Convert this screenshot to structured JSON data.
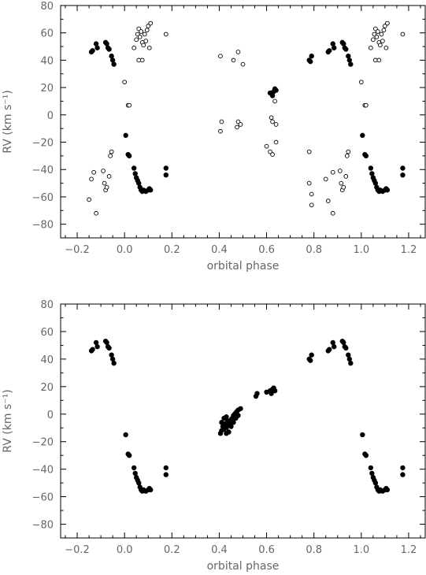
{
  "chart_data": [
    {
      "type": "scatter",
      "title": "",
      "xlabel": "orbital phase",
      "ylabel": "RV (km s⁻¹)",
      "xlim": [
        -0.27,
        1.27
      ],
      "ylim": [
        -90,
        80
      ],
      "xticks": [
        -0.2,
        0.0,
        0.2,
        0.4,
        0.6,
        0.8,
        1.0,
        1.2
      ],
      "xtick_labels": [
        "−0.2",
        "0.0",
        "0.2",
        "0.4",
        "0.6",
        "0.8",
        "1.0",
        "1.2"
      ],
      "yticks": [
        -80,
        -60,
        -40,
        -20,
        0,
        20,
        40,
        60,
        80
      ],
      "ytick_labels": [
        "−80",
        "−60",
        "−40",
        "−20",
        "0",
        "20",
        "40",
        "60",
        "80"
      ],
      "grid": false,
      "series": [
        {
          "marker": "filled-circle",
          "color": "#000000",
          "points": [
            [
              -0.14,
              46
            ],
            [
              -0.135,
              47
            ],
            [
              -0.12,
              52
            ],
            [
              -0.115,
              49
            ],
            [
              -0.08,
              53
            ],
            [
              -0.075,
              52
            ],
            [
              -0.07,
              49
            ],
            [
              -0.065,
              48
            ],
            [
              -0.055,
              43
            ],
            [
              -0.05,
              40
            ],
            [
              -0.045,
              37
            ],
            [
              0.005,
              -15
            ],
            [
              0.015,
              -29
            ],
            [
              0.02,
              -30
            ],
            [
              0.04,
              -39
            ],
            [
              0.045,
              -43
            ],
            [
              0.05,
              -46
            ],
            [
              0.055,
              -48
            ],
            [
              0.06,
              -50
            ],
            [
              0.065,
              -53
            ],
            [
              0.07,
              -55
            ],
            [
              0.075,
              -56
            ],
            [
              0.08,
              -55
            ],
            [
              0.09,
              -56
            ],
            [
              0.1,
              -55
            ],
            [
              0.105,
              -54
            ],
            [
              0.11,
              -55
            ],
            [
              0.175,
              -39
            ],
            [
              0.175,
              -44
            ],
            [
              0.615,
              16
            ],
            [
              0.625,
              14
            ],
            [
              0.63,
              17
            ],
            [
              0.635,
              19
            ],
            [
              0.64,
              18
            ],
            [
              0.78,
              40
            ],
            [
              0.785,
              39
            ],
            [
              0.79,
              43
            ],
            [
              0.86,
              46
            ],
            [
              0.865,
              47
            ],
            [
              0.88,
              52
            ],
            [
              0.885,
              49
            ],
            [
              0.92,
              53
            ],
            [
              0.925,
              52
            ],
            [
              0.93,
              49
            ],
            [
              0.935,
              48
            ],
            [
              0.945,
              43
            ],
            [
              0.95,
              40
            ],
            [
              0.955,
              37
            ],
            [
              1.005,
              -15
            ],
            [
              1.015,
              -29
            ],
            [
              1.02,
              -30
            ],
            [
              1.04,
              -39
            ],
            [
              1.045,
              -43
            ],
            [
              1.05,
              -46
            ],
            [
              1.055,
              -48
            ],
            [
              1.06,
              -50
            ],
            [
              1.065,
              -53
            ],
            [
              1.07,
              -55
            ],
            [
              1.075,
              -56
            ],
            [
              1.08,
              -55
            ],
            [
              1.09,
              -56
            ],
            [
              1.1,
              -55
            ],
            [
              1.105,
              -54
            ],
            [
              1.11,
              -55
            ],
            [
              1.175,
              -39
            ],
            [
              1.175,
              -44
            ]
          ]
        },
        {
          "marker": "open-circle",
          "color": "#000000",
          "points": [
            [
              -0.15,
              -62
            ],
            [
              -0.14,
              -47
            ],
            [
              -0.13,
              -42
            ],
            [
              -0.12,
              -72
            ],
            [
              -0.09,
              -41
            ],
            [
              -0.085,
              -50
            ],
            [
              -0.08,
              -55
            ],
            [
              -0.075,
              -53
            ],
            [
              -0.065,
              -45
            ],
            [
              -0.06,
              -30
            ],
            [
              -0.055,
              -27
            ],
            [
              0.0,
              24
            ],
            [
              0.015,
              7
            ],
            [
              0.02,
              7
            ],
            [
              0.04,
              49
            ],
            [
              0.05,
              55
            ],
            [
              0.055,
              59
            ],
            [
              0.06,
              63
            ],
            [
              0.065,
              57
            ],
            [
              0.07,
              61
            ],
            [
              0.075,
              53
            ],
            [
              0.08,
              51
            ],
            [
              0.085,
              59
            ],
            [
              0.09,
              54
            ],
            [
              0.095,
              62
            ],
            [
              0.1,
              65
            ],
            [
              0.105,
              49
            ],
            [
              0.11,
              67
            ],
            [
              0.175,
              59
            ],
            [
              0.06,
              40
            ],
            [
              0.075,
              40
            ],
            [
              0.405,
              43
            ],
            [
              0.405,
              -12
            ],
            [
              0.41,
              -5
            ],
            [
              0.46,
              40
            ],
            [
              0.475,
              -9
            ],
            [
              0.48,
              46
            ],
            [
              0.48,
              -5
            ],
            [
              0.49,
              -7
            ],
            [
              0.5,
              37
            ],
            [
              0.6,
              -23
            ],
            [
              0.615,
              -27
            ],
            [
              0.625,
              -29
            ],
            [
              0.62,
              -2
            ],
            [
              0.625,
              -5
            ],
            [
              0.635,
              10
            ],
            [
              0.64,
              -7
            ],
            [
              0.64,
              -20
            ],
            [
              0.78,
              -27
            ],
            [
              0.78,
              -50
            ],
            [
              0.79,
              -58
            ],
            [
              0.79,
              -66
            ],
            [
              0.85,
              -47
            ],
            [
              0.86,
              -63
            ],
            [
              0.88,
              -42
            ],
            [
              0.88,
              -72
            ],
            [
              0.91,
              -41
            ],
            [
              0.915,
              -50
            ],
            [
              0.92,
              -55
            ],
            [
              0.925,
              -53
            ],
            [
              0.935,
              -45
            ],
            [
              0.94,
              -30
            ],
            [
              0.945,
              -27
            ],
            [
              1.0,
              24
            ],
            [
              1.015,
              7
            ],
            [
              1.02,
              7
            ],
            [
              1.04,
              49
            ],
            [
              1.05,
              55
            ],
            [
              1.055,
              59
            ],
            [
              1.06,
              63
            ],
            [
              1.065,
              57
            ],
            [
              1.07,
              61
            ],
            [
              1.075,
              53
            ],
            [
              1.08,
              51
            ],
            [
              1.085,
              59
            ],
            [
              1.09,
              54
            ],
            [
              1.095,
              62
            ],
            [
              1.1,
              65
            ],
            [
              1.105,
              49
            ],
            [
              1.11,
              67
            ],
            [
              1.175,
              59
            ],
            [
              1.06,
              40
            ],
            [
              1.075,
              40
            ]
          ]
        }
      ]
    },
    {
      "type": "scatter",
      "title": "",
      "xlabel": "orbital phase",
      "ylabel": "RV (km s⁻¹)",
      "xlim": [
        -0.27,
        1.27
      ],
      "ylim": [
        -90,
        80
      ],
      "xticks": [
        -0.2,
        0.0,
        0.2,
        0.4,
        0.6,
        0.8,
        1.0,
        1.2
      ],
      "xtick_labels": [
        "−0.2",
        "0.0",
        "0.2",
        "0.4",
        "0.6",
        "0.8",
        "1.0",
        "1.2"
      ],
      "yticks": [
        -80,
        -60,
        -40,
        -20,
        0,
        20,
        40,
        60,
        80
      ],
      "ytick_labels": [
        "−80",
        "−60",
        "−40",
        "−20",
        "0",
        "20",
        "40",
        "60",
        "80"
      ],
      "grid": false,
      "series": [
        {
          "marker": "filled-circle",
          "color": "#000000",
          "points": [
            [
              -0.14,
              46
            ],
            [
              -0.135,
              47
            ],
            [
              -0.12,
              52
            ],
            [
              -0.115,
              49
            ],
            [
              -0.08,
              53
            ],
            [
              -0.075,
              52
            ],
            [
              -0.07,
              49
            ],
            [
              -0.065,
              48
            ],
            [
              -0.055,
              43
            ],
            [
              -0.05,
              40
            ],
            [
              -0.045,
              37
            ],
            [
              0.005,
              -15
            ],
            [
              0.015,
              -29
            ],
            [
              0.02,
              -30
            ],
            [
              0.04,
              -39
            ],
            [
              0.045,
              -43
            ],
            [
              0.05,
              -46
            ],
            [
              0.055,
              -48
            ],
            [
              0.06,
              -50
            ],
            [
              0.065,
              -53
            ],
            [
              0.07,
              -55
            ],
            [
              0.075,
              -56
            ],
            [
              0.08,
              -55
            ],
            [
              0.09,
              -56
            ],
            [
              0.1,
              -55
            ],
            [
              0.105,
              -54
            ],
            [
              0.11,
              -55
            ],
            [
              0.175,
              -39
            ],
            [
              0.175,
              -44
            ],
            [
              0.405,
              -14
            ],
            [
              0.41,
              -12
            ],
            [
              0.415,
              -9
            ],
            [
              0.42,
              -11
            ],
            [
              0.425,
              -7
            ],
            [
              0.43,
              -10
            ],
            [
              0.435,
              -5
            ],
            [
              0.44,
              -8
            ],
            [
              0.445,
              -6
            ],
            [
              0.45,
              -4
            ],
            [
              0.455,
              -3
            ],
            [
              0.46,
              -1
            ],
            [
              0.465,
              0
            ],
            [
              0.47,
              1
            ],
            [
              0.475,
              2
            ],
            [
              0.48,
              3
            ],
            [
              0.49,
              4
            ],
            [
              0.42,
              -3
            ],
            [
              0.43,
              -2
            ],
            [
              0.44,
              -13
            ],
            [
              0.45,
              -9
            ],
            [
              0.46,
              -6
            ],
            [
              0.47,
              -3
            ],
            [
              0.48,
              -1
            ],
            [
              0.41,
              -6
            ],
            [
              0.43,
              -14
            ],
            [
              0.555,
              13
            ],
            [
              0.56,
              15
            ],
            [
              0.6,
              16
            ],
            [
              0.615,
              17
            ],
            [
              0.62,
              15
            ],
            [
              0.625,
              18
            ],
            [
              0.63,
              19
            ],
            [
              0.635,
              17
            ],
            [
              0.78,
              40
            ],
            [
              0.785,
              39
            ],
            [
              0.79,
              43
            ],
            [
              0.86,
              46
            ],
            [
              0.865,
              47
            ],
            [
              0.88,
              52
            ],
            [
              0.885,
              49
            ],
            [
              0.92,
              53
            ],
            [
              0.925,
              52
            ],
            [
              0.93,
              49
            ],
            [
              0.935,
              48
            ],
            [
              0.945,
              43
            ],
            [
              0.95,
              40
            ],
            [
              0.955,
              37
            ],
            [
              1.005,
              -15
            ],
            [
              1.015,
              -29
            ],
            [
              1.02,
              -30
            ],
            [
              1.04,
              -39
            ],
            [
              1.045,
              -43
            ],
            [
              1.05,
              -46
            ],
            [
              1.055,
              -48
            ],
            [
              1.06,
              -50
            ],
            [
              1.065,
              -53
            ],
            [
              1.07,
              -55
            ],
            [
              1.075,
              -56
            ],
            [
              1.08,
              -55
            ],
            [
              1.09,
              -56
            ],
            [
              1.1,
              -55
            ],
            [
              1.105,
              -54
            ],
            [
              1.11,
              -55
            ],
            [
              1.175,
              -39
            ],
            [
              1.175,
              -44
            ]
          ]
        }
      ]
    }
  ]
}
